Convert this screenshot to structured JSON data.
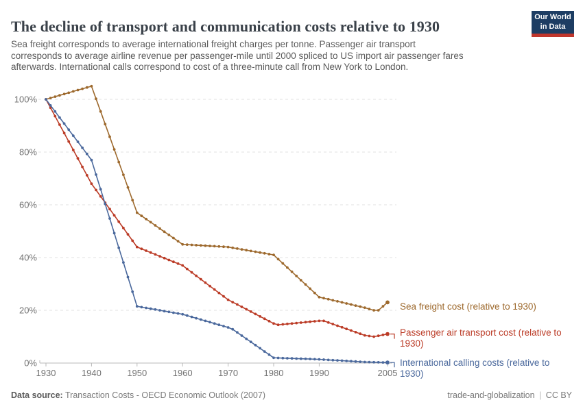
{
  "header": {
    "title": "The decline of transport and communication costs relative to 1930",
    "subtitle_lines": [
      "Sea freight corresponds to average international freight charges per tonne. Passenger air transport",
      "corresponds to average airline revenue per passenger-mile until 2000 spliced to US import air passenger fares",
      "afterwards. International calls correspond to cost of a three-minute call from New York to London."
    ],
    "logo": {
      "line1": "Our World",
      "line2": "in Data",
      "bg_color": "#1d3d63",
      "accent_color": "#c0362c"
    }
  },
  "chart_data": {
    "type": "line",
    "title": "The decline of transport and communication costs relative to 1930",
    "xlabel": "",
    "ylabel": "",
    "xlim": [
      1930,
      2005
    ],
    "ylim": [
      0,
      105
    ],
    "yticks": [
      0,
      20,
      40,
      60,
      80,
      100
    ],
    "ytick_suffix": "%",
    "xticks": [
      1930,
      1940,
      1950,
      1960,
      1970,
      1980,
      1990,
      2005
    ],
    "grid": "horizontal-dashed",
    "legend_position": "right-of-line-ends",
    "markers": "yearly-dots",
    "series": [
      {
        "name": "Sea freight cost (relative to 1930)",
        "label_lines": [
          "Sea freight cost (relative to 1930)"
        ],
        "color": "#9d692d",
        "points": [
          [
            1930,
            100
          ],
          [
            1940,
            105
          ],
          [
            1950,
            57
          ],
          [
            1960,
            45
          ],
          [
            1970,
            44
          ],
          [
            1980,
            41
          ],
          [
            1990,
            25
          ],
          [
            2000,
            21
          ],
          [
            2002,
            20
          ],
          [
            2003,
            20
          ],
          [
            2005,
            23
          ]
        ]
      },
      {
        "name": "Passenger air transport cost (relative to 1930)",
        "label_lines": [
          "Passenger air transport cost (relative to",
          "1930)"
        ],
        "color": "#bb3b26",
        "points": [
          [
            1930,
            100
          ],
          [
            1940,
            68
          ],
          [
            1950,
            44
          ],
          [
            1960,
            37
          ],
          [
            1970,
            24
          ],
          [
            1980,
            15
          ],
          [
            1981,
            14.5
          ],
          [
            1990,
            16
          ],
          [
            1991,
            16
          ],
          [
            2000,
            10.5
          ],
          [
            2002,
            10
          ],
          [
            2005,
            11
          ]
        ]
      },
      {
        "name": "International calling costs (relative to 1930)",
        "label_lines": [
          "International calling costs (relative to",
          "1930)"
        ],
        "color": "#4a689c",
        "points": [
          [
            1930,
            100
          ],
          [
            1940,
            77
          ],
          [
            1950,
            21.5
          ],
          [
            1960,
            18.5
          ],
          [
            1970,
            13.5
          ],
          [
            1971,
            12.8
          ],
          [
            1980,
            2
          ],
          [
            1990,
            1.4
          ],
          [
            2000,
            0.4
          ],
          [
            2005,
            0.2
          ]
        ]
      }
    ]
  },
  "footer": {
    "datasource_label": "Data source:",
    "datasource_value": "Transaction Costs - OECD Economic Outlook (2007)",
    "note": "trade-and-globalization",
    "separator": "|",
    "license": "CC BY"
  }
}
